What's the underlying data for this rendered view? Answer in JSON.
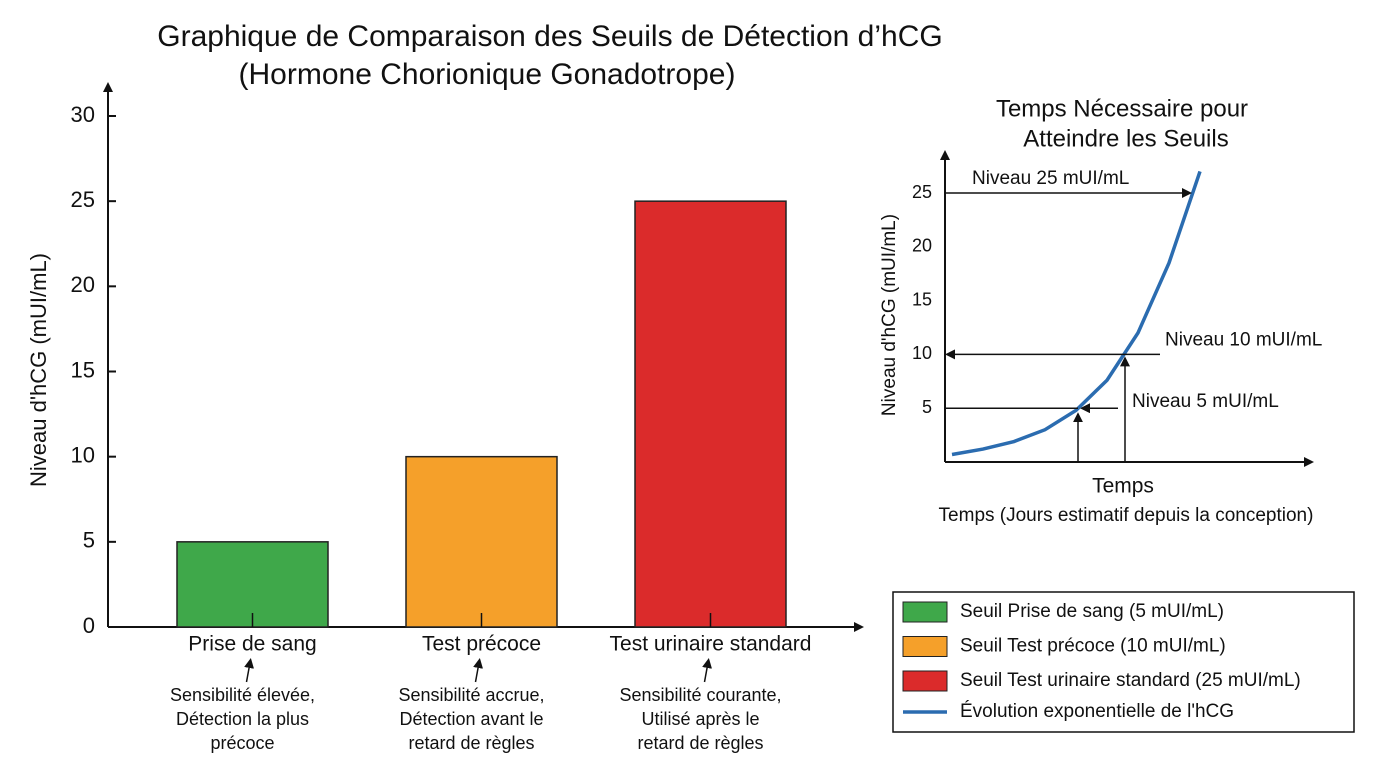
{
  "chart_data": [
    {
      "type": "bar",
      "title": [
        "Graphique de Comparaison des Seuils de Détection d’hCG",
        "(Hormone Chorionique Gonadotrope)"
      ],
      "y_label": "Niveau d'hCG (mUI/mL)",
      "categories": [
        "Prise de sang",
        "Test précoce",
        "Test urinaire standard"
      ],
      "values": [
        5,
        10,
        25
      ],
      "colors": [
        "#3fa84a",
        "#f5a02a",
        "#db2b2b"
      ],
      "category_notes": [
        [
          "Sensibilité élevée,",
          "Détection la plus",
          "précoce"
        ],
        [
          "Sensibilité accrue,",
          "Détection avant le",
          "retard de règles"
        ],
        [
          "Sensibilité courante,",
          "Utilisé après le",
          "retard de règles"
        ]
      ],
      "legend_labels": [
        "Seuil Prise de sang (5 mUI/mL)",
        "Seuil Test précoce (10 mUI/mL)",
        "Seuil Test urinaire standard (25 mUI/mL)"
      ],
      "ylim": [
        0,
        30
      ],
      "yticks": [
        0,
        5,
        10,
        15,
        20,
        25,
        30
      ]
    },
    {
      "type": "line",
      "title": [
        "Temps Nécessaire pour",
        "Atteindre les Seuils"
      ],
      "y_label": "Niveau d'hCG (mUI/mL)",
      "x_label": "Temps",
      "x_sublabel": "Temps (Jours estimatif depuis la conception)",
      "categories": [
        null,
        null,
        null,
        null,
        null,
        null,
        null,
        null,
        null
      ],
      "series": [
        {
          "name": "Évolution exponentielle de l'hCG",
          "color": "#2b6cb0",
          "values": [
            0.7,
            1.2,
            1.9,
            3.0,
            4.8,
            7.6,
            12,
            18.5,
            27
          ]
        }
      ],
      "annotations": [
        "Niveau 25 mUI/mL",
        "Niveau 10 mUI/mL",
        "Niveau 5 mUI/mL"
      ],
      "ylim": [
        0,
        28
      ],
      "yticks": [
        5,
        10,
        15,
        20,
        25
      ]
    }
  ]
}
